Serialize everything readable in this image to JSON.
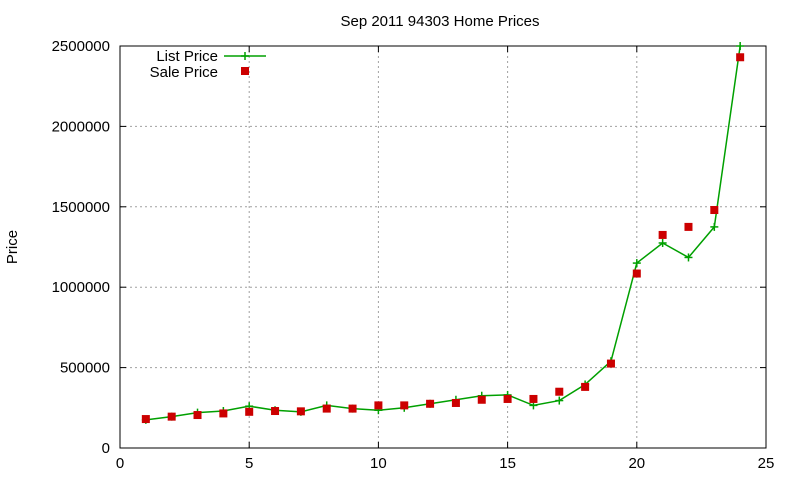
{
  "chart_data": {
    "type": "line",
    "title": "Sep 2011 94303 Home Prices",
    "xlabel": "",
    "ylabel": "Price",
    "xlim": [
      0,
      25
    ],
    "ylim": [
      0,
      2500000
    ],
    "xticks": [
      0,
      5,
      10,
      15,
      20,
      25
    ],
    "yticks": [
      0,
      500000,
      1000000,
      1500000,
      2000000,
      2500000
    ],
    "grid": true,
    "legend_position": "top-left",
    "series": [
      {
        "name": "List Price",
        "style": "line+plus",
        "color": "#00a000",
        "x": [
          1,
          2,
          3,
          4,
          5,
          6,
          7,
          8,
          9,
          10,
          11,
          12,
          13,
          14,
          15,
          16,
          17,
          18,
          19,
          20,
          21,
          22,
          23,
          24
        ],
        "y": [
          175000,
          195000,
          220000,
          230000,
          260000,
          235000,
          225000,
          265000,
          245000,
          235000,
          250000,
          275000,
          300000,
          325000,
          330000,
          265000,
          295000,
          395000,
          540000,
          1150000,
          1275000,
          1185000,
          1375000,
          2500000
        ]
      },
      {
        "name": "Sale Price",
        "style": "square",
        "color": "#cc0000",
        "x": [
          1,
          2,
          3,
          4,
          5,
          6,
          7,
          8,
          9,
          10,
          11,
          12,
          13,
          14,
          15,
          16,
          17,
          18,
          19,
          20,
          21,
          22,
          23,
          24
        ],
        "y": [
          180000,
          195000,
          205000,
          215000,
          225000,
          230000,
          228000,
          245000,
          245000,
          265000,
          265000,
          275000,
          280000,
          300000,
          305000,
          305000,
          350000,
          380000,
          525000,
          1085000,
          1325000,
          1375000,
          1480000,
          2430000
        ]
      }
    ]
  }
}
